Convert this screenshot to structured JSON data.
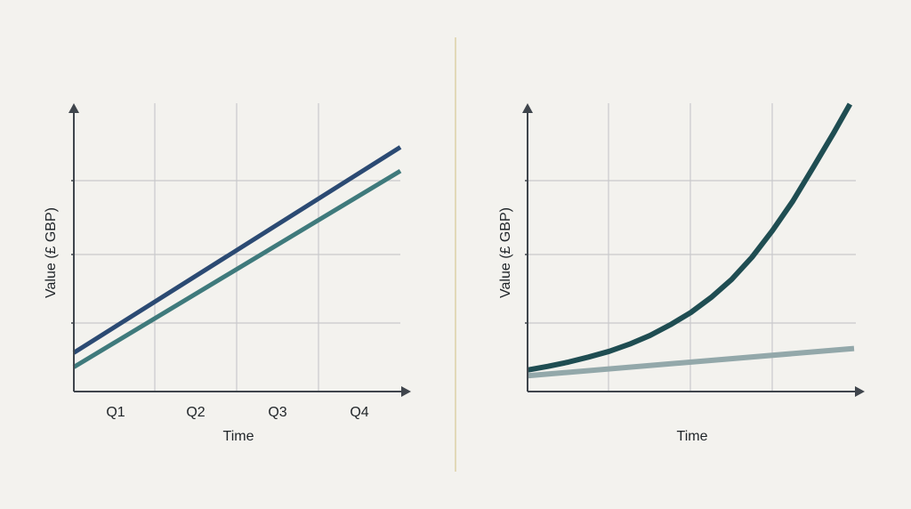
{
  "colors": {
    "background": "#f3f2ee",
    "grid": "#c9c9cc",
    "axis": "#3f454c",
    "divider": "#e2d9b8",
    "left_series_1": "#2b4a73",
    "left_series_2": "#3f7a7c",
    "right_series_1": "#1f4d52",
    "right_series_2": "#93a8aa"
  },
  "chart_data": [
    {
      "type": "line",
      "xlabel": "Time",
      "ylabel": "Value (£ GBP)",
      "x_tick_labels": [
        "Q1",
        "Q2",
        "Q3",
        "Q4"
      ],
      "grid": true,
      "xlim": [
        0,
        4
      ],
      "ylim": [
        0,
        4
      ],
      "series": [
        {
          "x": [
            0,
            4
          ],
          "y": [
            0.54,
            3.4
          ]
        },
        {
          "x": [
            0,
            4
          ],
          "y": [
            0.34,
            3.07
          ]
        }
      ]
    },
    {
      "type": "line",
      "xlabel": "Time",
      "ylabel": "Value (£ GBP)",
      "x_tick_labels": [],
      "grid": true,
      "xlim": [
        0,
        4
      ],
      "ylim": [
        0,
        4
      ],
      "series": [
        {
          "x": [
            0,
            0.25,
            0.5,
            0.75,
            1,
            1.25,
            1.5,
            1.75,
            2,
            2.25,
            2.5,
            2.75,
            3,
            3.25,
            3.5,
            3.75,
            3.95
          ],
          "y": [
            0.3,
            0.35,
            0.41,
            0.48,
            0.56,
            0.66,
            0.78,
            0.93,
            1.1,
            1.31,
            1.56,
            1.87,
            2.24,
            2.65,
            3.12,
            3.6,
            4.0
          ]
        },
        {
          "x": [
            0,
            4
          ],
          "y": [
            0.22,
            0.6
          ]
        }
      ]
    }
  ]
}
